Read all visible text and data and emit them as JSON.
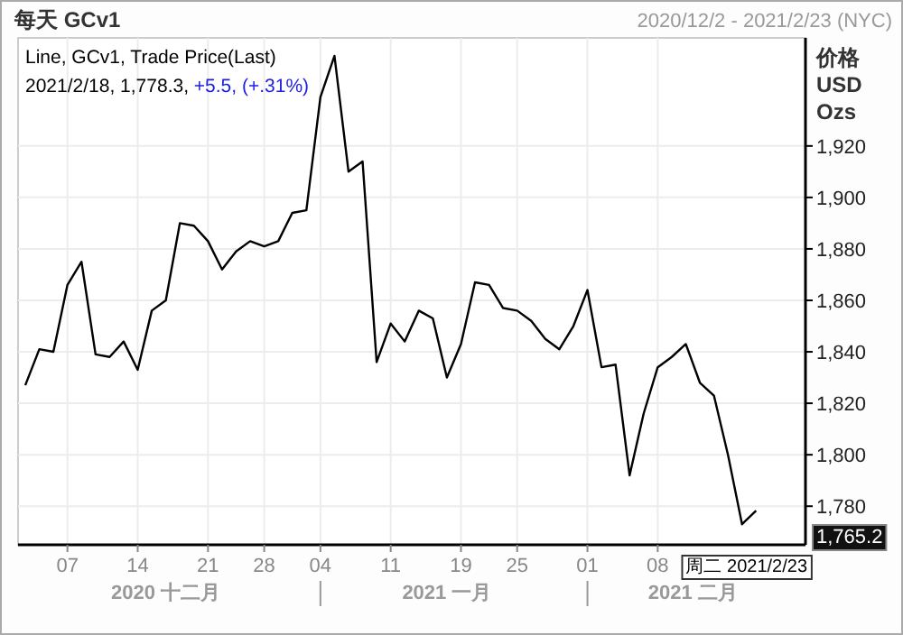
{
  "chart_data": {
    "type": "line",
    "title": "每天 GCv1",
    "subtitle": "2020/12/2 - 2021/2/23 (NYC)",
    "ylabel": "价格 USD Ozs",
    "categories": [
      null,
      null,
      null,
      "07",
      null,
      null,
      null,
      null,
      "14",
      null,
      null,
      null,
      null,
      "21",
      null,
      null,
      null,
      "28",
      null,
      null,
      null,
      "04",
      null,
      null,
      null,
      null,
      "11",
      null,
      null,
      null,
      null,
      "19",
      null,
      null,
      null,
      "25",
      null,
      null,
      null,
      null,
      "01",
      null,
      null,
      null,
      null,
      "08",
      null,
      null,
      null,
      null,
      null,
      null,
      null,
      null,
      null,
      null
    ],
    "series": [
      {
        "name": "Line, GCv1, Trade Price(Last)",
        "color": "#000000",
        "values": [
          1827,
          1841,
          1840,
          1866,
          1875,
          1839,
          1838,
          1844,
          1833,
          1856,
          1860,
          1890,
          1889,
          1883,
          1872,
          1879,
          1883,
          1881,
          1883,
          1894,
          1895,
          1939,
          1955,
          1910,
          1914,
          1836,
          1851,
          1844,
          1856,
          1853,
          1830,
          1843,
          1867,
          1866,
          1857,
          1856,
          1852,
          1845,
          1841,
          1850,
          1864,
          1834,
          1835,
          1792,
          1816,
          1834,
          1838,
          1843,
          1828,
          1823,
          1800,
          1773,
          1778.3,
          null,
          null,
          null
        ]
      }
    ],
    "ylim": [
      1765,
      1962
    ],
    "yticks": [
      {
        "value": 1780,
        "label": "1,780"
      },
      {
        "value": 1800,
        "label": "1,800"
      },
      {
        "value": 1820,
        "label": "1,820"
      },
      {
        "value": 1840,
        "label": "1,840"
      },
      {
        "value": 1860,
        "label": "1,860"
      },
      {
        "value": 1880,
        "label": "1,880"
      },
      {
        "value": 1900,
        "label": "1,900"
      },
      {
        "value": 1920,
        "label": "1,920"
      }
    ],
    "grid": true,
    "marker": "none",
    "line_style": "solid",
    "annotations": [
      "2021/2/18, 1,778.3, +5.5, (+.31%)",
      "2020 十二月",
      "2021 一月",
      "2021 二月",
      "周二 2021/2/23",
      "1,765.2"
    ]
  }
}
